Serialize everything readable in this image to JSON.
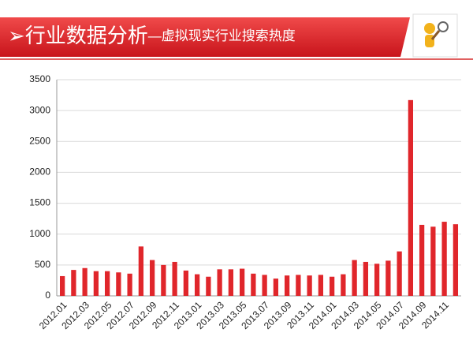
{
  "chart_data": {
    "type": "bar",
    "title": "➢行业数据分析",
    "subtitle": "—虚拟现实行业搜索热度",
    "categories": [
      "2012.01",
      null,
      "2012.03",
      null,
      "2012.05",
      null,
      "2012.07",
      null,
      "2012.09",
      null,
      "2012.11",
      null,
      "2013.01",
      null,
      "2013.03",
      null,
      "2013.05",
      null,
      "2013.07",
      null,
      "2013.09",
      null,
      "2013.11",
      null,
      "2014.01",
      null,
      "2014.03",
      null,
      "2014.05",
      null,
      "2014.07",
      null,
      "2014.09",
      null,
      "2014.11",
      null
    ],
    "values": [
      320,
      420,
      450,
      400,
      400,
      380,
      360,
      800,
      580,
      500,
      550,
      410,
      350,
      310,
      430,
      430,
      440,
      360,
      340,
      280,
      330,
      340,
      330,
      340,
      310,
      350,
      580,
      550,
      520,
      570,
      720,
      3170,
      1150,
      1120,
      1200,
      1160
    ],
    "color": "#e0262b",
    "ylim": [
      0,
      3500
    ],
    "yticks": [
      0,
      500,
      1000,
      1500,
      2000,
      2500,
      3000,
      3500
    ],
    "grid": true
  }
}
